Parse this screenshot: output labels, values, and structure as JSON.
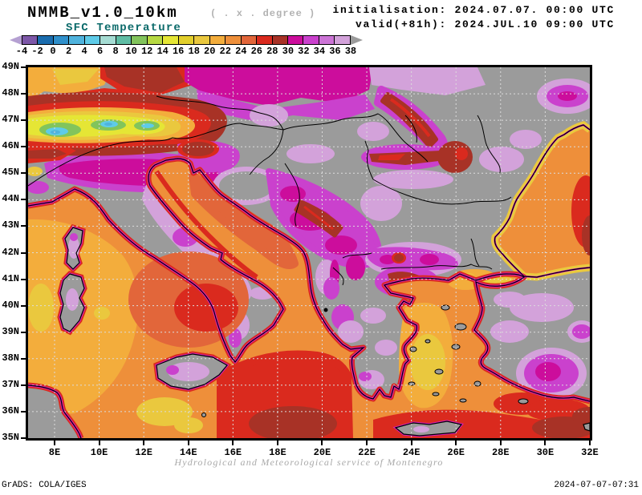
{
  "header": {
    "model": "NMMB_v1.0_10km",
    "model_note": "( . x . degree )",
    "variable": "SFC Temperature",
    "init_label": "initialisation: 2024.07.07. 00:00 UTC",
    "valid_label": "valid(+81h): 2024.JUL.10 09:00 UTC"
  },
  "colorbar": {
    "levels": [
      "-4",
      "-2",
      "0",
      "2",
      "4",
      "6",
      "8",
      "10",
      "12",
      "14",
      "16",
      "18",
      "20",
      "22",
      "24",
      "26",
      "28",
      "30",
      "32",
      "34",
      "36",
      "38"
    ],
    "colors": [
      "#7d57a8",
      "#1a6cae",
      "#3090cb",
      "#4fb3dd",
      "#5ecbe8",
      "#a5dcd3",
      "#5fbda4",
      "#82c45c",
      "#b7d942",
      "#e5e635",
      "#e2cf2b",
      "#eac83e",
      "#f3ad3c",
      "#ee8f3a",
      "#e2663a",
      "#da2a1e",
      "#a83226",
      "#cc0d9c",
      "#ca41cd",
      "#cc74d6",
      "#d3a2da"
    ],
    "under_color": "#b5a0d2",
    "over_color": "#9b9b9b"
  },
  "map": {
    "lat_labels": [
      "49N",
      "48N",
      "47N",
      "46N",
      "45N",
      "44N",
      "43N",
      "42N",
      "41N",
      "40N",
      "39N",
      "38N",
      "37N",
      "36N",
      "35N"
    ],
    "lon_labels": [
      "8E",
      "10E",
      "12E",
      "14E",
      "16E",
      "18E",
      "20E",
      "22E",
      "24E",
      "26E",
      "28E",
      "30E",
      "32E"
    ],
    "palette": {
      "land_over": "#9b9b9b",
      "sea_base": "#ee8f3a",
      "sea_warm": "#e2663a",
      "amber": "#f3ad3c",
      "gold": "#eac83e",
      "yellow": "#e5e635",
      "green": "#82c45c",
      "cyan": "#5ecbe8",
      "blue": "#4fb3dd",
      "red": "#da2a1e",
      "red_dark": "#a83226",
      "magenta_deep": "#cc0d9c",
      "magenta": "#ca41cd",
      "pink": "#cc74d6",
      "pink_pale": "#d3a2da",
      "rim_magenta": "#d81fbe",
      "grid": "#dcdcdc",
      "line": "#000000"
    }
  },
  "footer": {
    "credit": "Hydrological and Meteorological service of Montenegro",
    "grads": "GrADS: COLA/IGES",
    "timestamp": "2024-07-07-07:31"
  }
}
